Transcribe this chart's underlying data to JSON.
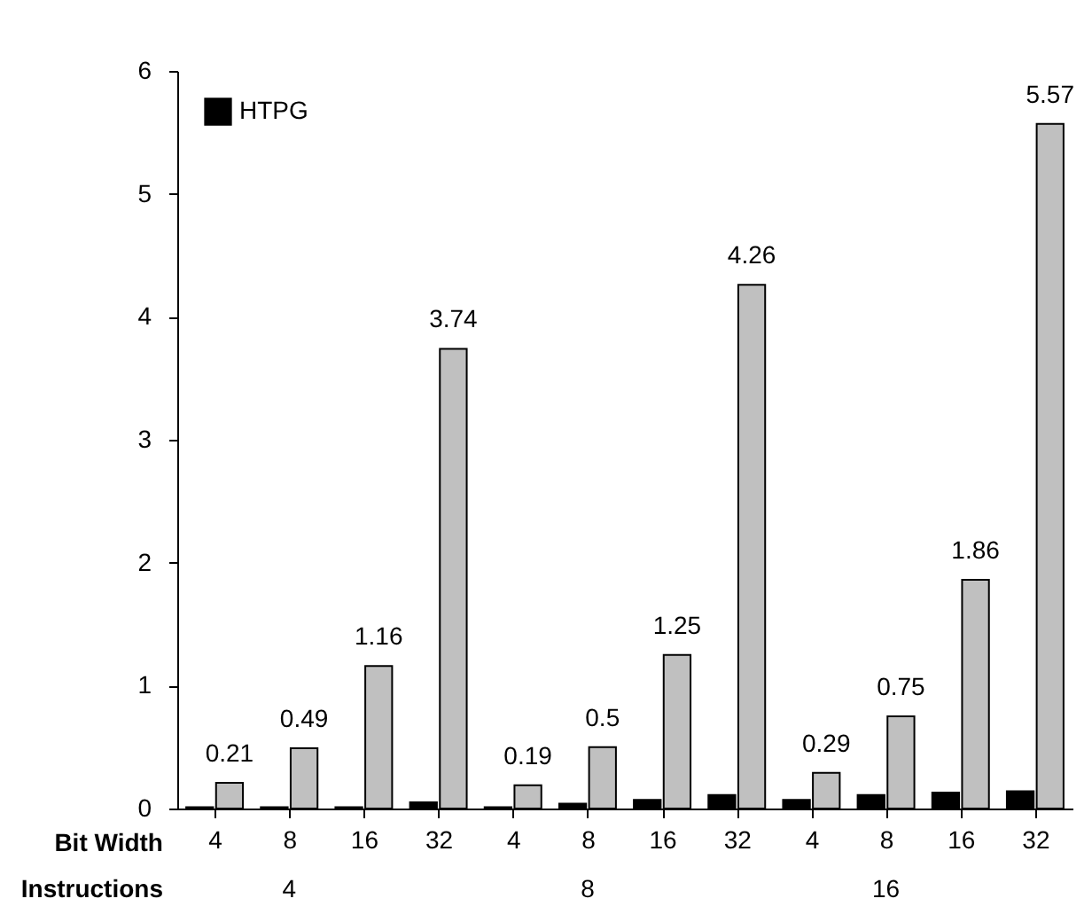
{
  "chart_data": {
    "type": "bar",
    "categories": [
      "4",
      "8",
      "16",
      "32",
      "4",
      "8",
      "16",
      "32",
      "4",
      "8",
      "16",
      "32"
    ],
    "series": [
      {
        "name": "HTPG",
        "color": "#000000",
        "values": [
          0.01,
          0.01,
          0.01,
          0.05,
          0.01,
          0.04,
          0.07,
          0.11,
          0.07,
          0.11,
          0.13,
          0.14
        ]
      },
      {
        "color": "#c0c0c0",
        "values": [
          0.21,
          0.49,
          1.16,
          3.74,
          0.19,
          0.5,
          1.25,
          4.26,
          0.29,
          0.75,
          1.86,
          5.57
        ],
        "value_labels": [
          "0.21",
          "0.49",
          "1.16",
          "3.74",
          "0.19",
          "0.5",
          "1.25",
          "4.26",
          "0.29",
          "0.75",
          "1.86",
          "5.57"
        ]
      }
    ],
    "ylim": [
      0,
      6
    ],
    "yticks": [
      0,
      1,
      2,
      3,
      4,
      5,
      6
    ],
    "grid": false,
    "legend": "top left",
    "annotations": [
      "Bit Width",
      "Instructions",
      "4",
      "8",
      "16"
    ]
  }
}
